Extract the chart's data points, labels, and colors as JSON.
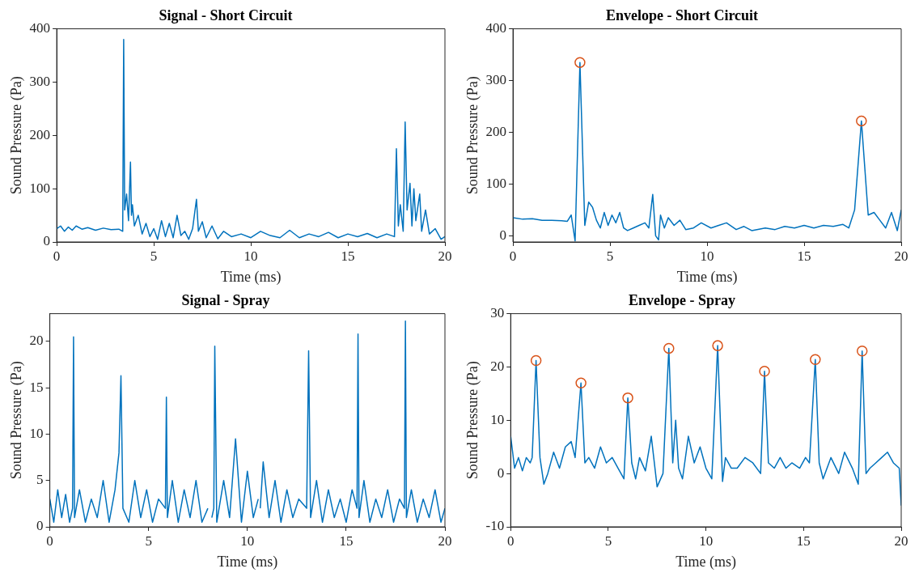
{
  "chart_data": [
    {
      "type": "line",
      "title": "Signal - Short Circuit",
      "xlabel": "Time (ms)",
      "ylabel": "Sound Pressure (Pa)",
      "xlim": [
        0,
        20
      ],
      "xticks": [
        0,
        5,
        10,
        15,
        20
      ],
      "ylim": [
        0,
        400
      ],
      "yticks": [
        0,
        100,
        200,
        300,
        400
      ],
      "series": [
        {
          "color": "#0072bd",
          "x": [
            0,
            0.2,
            0.4,
            0.6,
            0.8,
            1.0,
            1.3,
            1.6,
            2.0,
            2.4,
            2.8,
            3.2,
            3.4,
            3.45,
            3.5,
            3.6,
            3.7,
            3.8,
            3.85,
            3.9,
            4.0,
            4.2,
            4.4,
            4.6,
            4.8,
            5.0,
            5.2,
            5.4,
            5.6,
            5.8,
            6.0,
            6.2,
            6.4,
            6.6,
            6.8,
            7.0,
            7.2,
            7.3,
            7.5,
            7.7,
            8.0,
            8.3,
            8.6,
            9.0,
            9.5,
            10,
            10.5,
            11,
            11.5,
            12,
            12.5,
            13,
            13.5,
            14,
            14.5,
            15,
            15.5,
            16,
            16.5,
            17,
            17.4,
            17.5,
            17.6,
            17.7,
            17.85,
            17.95,
            18.05,
            18.2,
            18.3,
            18.4,
            18.5,
            18.7,
            18.8,
            19,
            19.2,
            19.5,
            19.8,
            20
          ],
          "values": [
            25,
            30,
            20,
            28,
            22,
            30,
            24,
            27,
            22,
            26,
            23,
            24,
            20,
            380,
            60,
            90,
            40,
            150,
            50,
            70,
            30,
            50,
            15,
            35,
            10,
            25,
            5,
            40,
            10,
            35,
            8,
            50,
            12,
            20,
            5,
            25,
            80,
            20,
            38,
            8,
            30,
            6,
            20,
            10,
            15,
            8,
            20,
            12,
            8,
            22,
            8,
            15,
            10,
            18,
            8,
            15,
            10,
            16,
            8,
            15,
            10,
            175,
            30,
            70,
            20,
            225,
            60,
            110,
            30,
            100,
            40,
            90,
            20,
            60,
            15,
            25,
            5,
            10
          ]
        }
      ]
    },
    {
      "type": "line",
      "title": "Envelope - Short Circuit",
      "xlabel": "Time (ms)",
      "ylabel": "Sound Pressure (Pa)",
      "xlim": [
        0,
        20
      ],
      "xticks": [
        0,
        5,
        10,
        15,
        20
      ],
      "ylim": [
        -12,
        400
      ],
      "yticks": [
        0,
        100,
        200,
        300,
        400
      ],
      "series": [
        {
          "color": "#0072bd",
          "x": [
            0,
            0.5,
            1,
            1.5,
            2,
            2.5,
            2.8,
            3.0,
            3.2,
            3.45,
            3.7,
            3.9,
            4.1,
            4.3,
            4.5,
            4.7,
            4.9,
            5.1,
            5.3,
            5.5,
            5.7,
            5.9,
            6.2,
            6.5,
            6.8,
            7.0,
            7.2,
            7.35,
            7.5,
            7.6,
            7.8,
            8.0,
            8.3,
            8.6,
            8.9,
            9.3,
            9.7,
            10.2,
            10.6,
            11,
            11.5,
            11.9,
            12.3,
            13,
            13.5,
            14,
            14.5,
            15,
            15.5,
            16,
            16.5,
            17,
            17.3,
            17.6,
            17.95,
            18.3,
            18.6,
            18.9,
            19.2,
            19.5,
            19.8,
            20
          ],
          "values": [
            35,
            32,
            33,
            30,
            30,
            29,
            28,
            40,
            -10,
            335,
            20,
            65,
            55,
            30,
            15,
            45,
            20,
            40,
            25,
            45,
            15,
            10,
            15,
            20,
            25,
            15,
            80,
            0,
            -8,
            40,
            15,
            35,
            20,
            30,
            12,
            15,
            25,
            15,
            20,
            25,
            12,
            18,
            10,
            15,
            12,
            18,
            15,
            20,
            15,
            20,
            18,
            22,
            15,
            50,
            222,
            40,
            45,
            30,
            15,
            45,
            10,
            50
          ]
        },
        {
          "type": "scatter",
          "color": "#d95319",
          "marker": "circle",
          "x": [
            3.45,
            17.95
          ],
          "values": [
            335,
            222
          ]
        }
      ]
    },
    {
      "type": "line",
      "title": "Signal - Spray",
      "xlabel": "Time (ms)",
      "ylabel": "Sound Pressure (Pa)",
      "xlim": [
        0,
        20
      ],
      "xticks": [
        0,
        5,
        10,
        15,
        20
      ],
      "ylim": [
        0,
        23
      ],
      "yticks": [
        0,
        5,
        10,
        15,
        20
      ],
      "series": [
        {
          "color": "#0072bd",
          "x": [
            0,
            0.2,
            0.4,
            0.6,
            0.8,
            1.0,
            1.15,
            1.2,
            1.25,
            1.5,
            1.8,
            2.1,
            2.4,
            2.7,
            3.0,
            3.3,
            3.5,
            3.6,
            3.7,
            4.0,
            4.3,
            4.6,
            4.9,
            5.2,
            5.5,
            5.85,
            5.9,
            5.95,
            6.2,
            6.5,
            6.8,
            7.1,
            7.4,
            7.7,
            8.0,
            8.1,
            8.2,
            8.3,
            8.35,
            8.45,
            8.8,
            9.1,
            9.4,
            9.7,
            10.0,
            10.3,
            10.55,
            10.6,
            10.65,
            10.8,
            11.1,
            11.4,
            11.7,
            12.0,
            12.3,
            12.6,
            13.0,
            13.1,
            13.2,
            13.5,
            13.8,
            14.1,
            14.4,
            14.7,
            15.0,
            15.3,
            15.55,
            15.6,
            15.65,
            15.9,
            16.2,
            16.5,
            16.8,
            17.1,
            17.4,
            17.7,
            17.95,
            18.0,
            18.05,
            18.3,
            18.6,
            18.9,
            19.2,
            19.5,
            19.8,
            20
          ],
          "values": [
            3,
            0.5,
            4,
            1,
            3.5,
            0.5,
            2,
            20.5,
            1,
            4,
            0.5,
            3,
            1,
            5,
            0.5,
            4,
            8,
            16.3,
            2,
            0.5,
            5,
            1,
            4,
            0.5,
            3,
            2,
            14,
            1,
            5,
            0.5,
            4,
            1,
            5,
            0.5,
            2,
            null,
            1,
            2,
            19.5,
            0.5,
            5,
            1,
            9.5,
            0.5,
            6,
            1,
            3,
            null,
            2,
            7,
            1,
            5,
            0.5,
            4,
            1,
            3,
            2,
            19,
            1,
            5,
            0.5,
            4,
            1,
            3,
            0.5,
            4,
            2,
            20.8,
            1,
            5,
            0.5,
            3,
            1,
            4,
            0.5,
            3,
            2,
            22.2,
            1,
            4,
            0.5,
            3,
            1,
            4,
            0.5,
            2
          ]
        }
      ]
    },
    {
      "type": "line",
      "title": "Envelope - Spray",
      "xlabel": "Time (ms)",
      "ylabel": "Sound Pressure (Pa)",
      "xlim": [
        0,
        20
      ],
      "xticks": [
        0,
        5,
        10,
        15,
        20
      ],
      "ylim": [
        -10,
        30
      ],
      "yticks": [
        -10,
        0,
        10,
        20,
        30
      ],
      "series": [
        {
          "color": "#0072bd",
          "x": [
            0,
            0.2,
            0.4,
            0.6,
            0.8,
            1.0,
            1.1,
            1.3,
            1.5,
            1.7,
            1.9,
            2.2,
            2.5,
            2.8,
            3.1,
            3.3,
            3.6,
            3.8,
            4.0,
            4.3,
            4.6,
            4.9,
            5.2,
            5.5,
            5.8,
            6.0,
            6.2,
            6.4,
            6.6,
            6.9,
            7.2,
            7.5,
            7.8,
            8.1,
            8.3,
            8.45,
            8.6,
            8.8,
            9.1,
            9.4,
            9.7,
            10.0,
            10.3,
            10.6,
            10.85,
            11.0,
            11.3,
            11.6,
            12.0,
            12.4,
            12.8,
            13.0,
            13.2,
            13.5,
            13.8,
            14.1,
            14.4,
            14.8,
            15.1,
            15.3,
            15.6,
            15.8,
            16.0,
            16.4,
            16.8,
            17.1,
            17.5,
            17.8,
            18.0,
            18.2,
            18.4,
            18.7,
            19.0,
            19.3,
            19.6,
            19.9,
            20
          ],
          "values": [
            7,
            1,
            3,
            0.5,
            3,
            2,
            3,
            21.2,
            3,
            -2,
            0,
            4,
            1,
            5,
            6,
            3,
            17,
            2,
            3,
            1,
            5,
            2,
            3,
            1,
            -1,
            14.2,
            2,
            -1,
            3,
            0.5,
            7,
            -2.5,
            0,
            23.5,
            2,
            10,
            1,
            -1,
            7,
            2,
            5,
            1,
            -1,
            24,
            -1.5,
            3,
            1,
            1,
            3,
            2,
            0,
            19.2,
            2,
            1,
            3,
            1,
            2,
            1,
            3,
            2,
            21.4,
            2,
            -1,
            3,
            0,
            4,
            1,
            -2,
            23,
            0,
            1,
            2,
            3,
            4,
            2,
            1,
            -6
          ]
        },
        {
          "type": "scatter",
          "color": "#d95319",
          "marker": "circle",
          "x": [
            1.3,
            3.6,
            6.0,
            8.1,
            10.6,
            13.0,
            15.6,
            18.0
          ],
          "values": [
            21.2,
            17,
            14.2,
            23.5,
            24,
            19.2,
            21.4,
            23
          ]
        }
      ]
    }
  ]
}
